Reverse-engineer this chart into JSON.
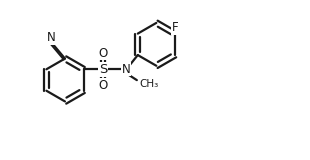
{
  "background_color": "#ffffff",
  "line_color": "#1a1a1a",
  "line_width": 1.6,
  "font_size_atoms": 8.5,
  "font_size_small": 7.5,
  "xlim": [
    0,
    10.5
  ],
  "ylim": [
    0,
    5.5
  ]
}
